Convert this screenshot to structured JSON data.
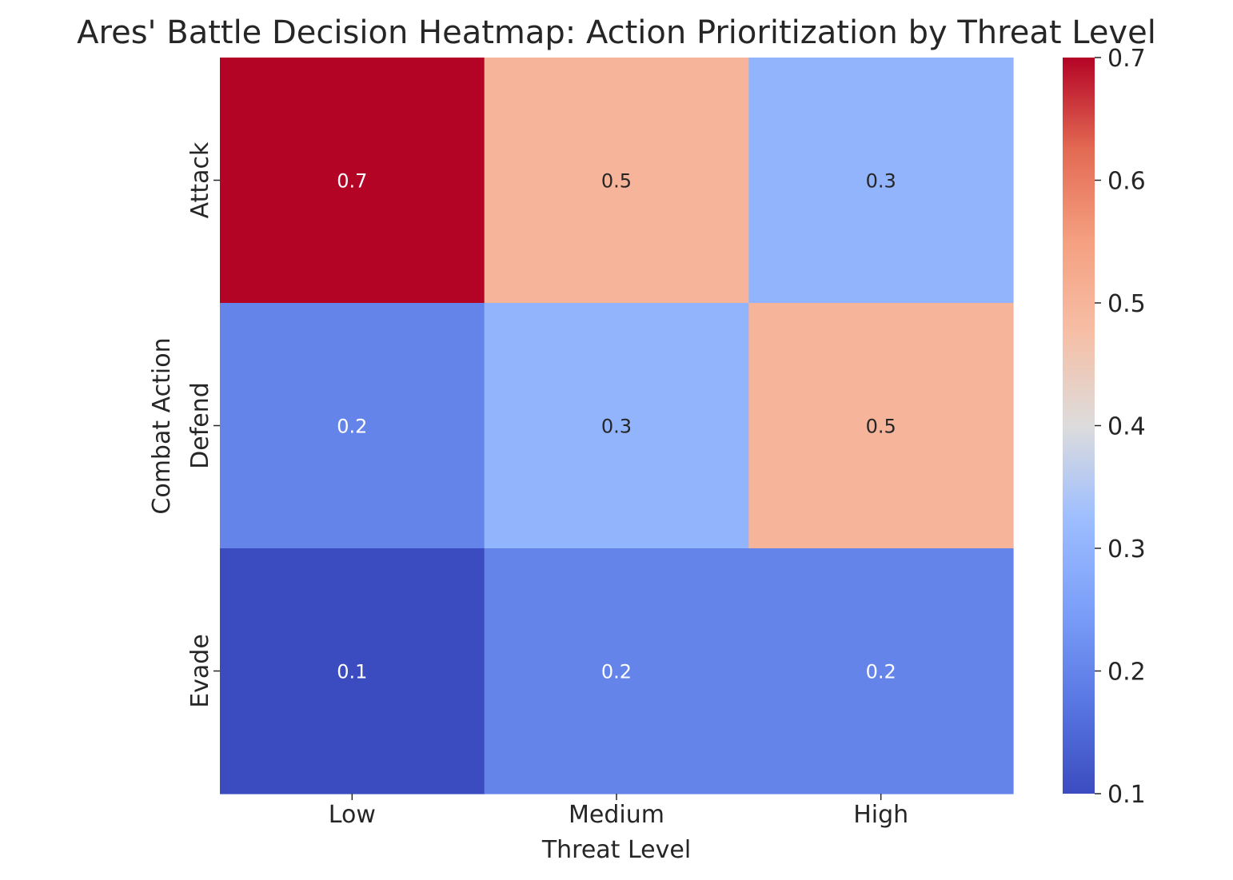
{
  "chart_data": {
    "type": "heatmap",
    "title": "Ares' Battle Decision Heatmap: Action Prioritization by Threat Level",
    "xlabel": "Threat Level",
    "ylabel": "Combat Action",
    "x_categories": [
      "Low",
      "Medium",
      "High"
    ],
    "y_categories": [
      "Attack",
      "Defend",
      "Evade"
    ],
    "values": [
      [
        0.7,
        0.5,
        0.3
      ],
      [
        0.2,
        0.3,
        0.5
      ],
      [
        0.1,
        0.2,
        0.2
      ]
    ],
    "cell_labels": [
      [
        "0.7",
        "0.5",
        "0.3"
      ],
      [
        "0.2",
        "0.3",
        "0.5"
      ],
      [
        "0.1",
        "0.2",
        "0.2"
      ]
    ],
    "colorbar": {
      "min": 0.1,
      "max": 0.7,
      "ticks": [
        0.1,
        0.2,
        0.3,
        0.4,
        0.5,
        0.6,
        0.7
      ],
      "tick_labels": [
        "0.1",
        "0.2",
        "0.3",
        "0.4",
        "0.5",
        "0.6",
        "0.7"
      ],
      "colormap": "coolwarm"
    }
  }
}
